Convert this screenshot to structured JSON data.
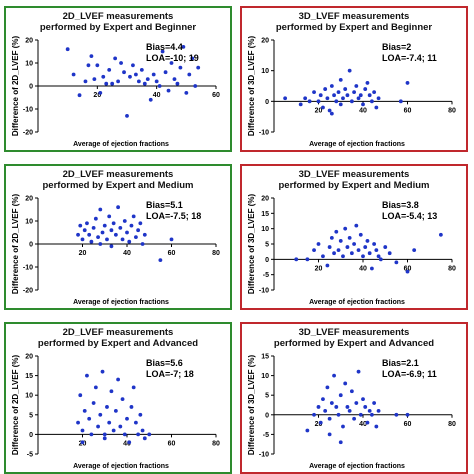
{
  "chart_data": [
    {
      "type": "scatter",
      "title": "2D_LVEF measurements performed by Expert and Beginner",
      "title_lines": [
        "2D_LVEF measurements",
        "performed by Expert and Beginner"
      ],
      "xlabel": "Average of ejection fractions",
      "ylabel": "Difference of 2D_LVEF (%)",
      "xlim": [
        0,
        60
      ],
      "ylim": [
        -20,
        20
      ],
      "xticks": [
        20,
        40,
        60
      ],
      "yticks": [
        -20,
        -10,
        0,
        10,
        20
      ],
      "bias_label": "Bias=4.4",
      "loa_label": "LOA=-10; 19",
      "frame_color": "#2e8b2e",
      "points": [
        [
          10,
          16
        ],
        [
          12,
          5
        ],
        [
          14,
          -4
        ],
        [
          16,
          2
        ],
        [
          17,
          9
        ],
        [
          18,
          13
        ],
        [
          19,
          3
        ],
        [
          20,
          9
        ],
        [
          21,
          -3
        ],
        [
          22,
          4
        ],
        [
          23,
          1
        ],
        [
          24,
          7
        ],
        [
          25,
          1
        ],
        [
          26,
          12
        ],
        [
          27,
          2
        ],
        [
          28,
          10
        ],
        [
          29,
          6
        ],
        [
          30,
          -13
        ],
        [
          31,
          4
        ],
        [
          32,
          9
        ],
        [
          33,
          5
        ],
        [
          34,
          2
        ],
        [
          35,
          7
        ],
        [
          36,
          1
        ],
        [
          37,
          3
        ],
        [
          38,
          -6
        ],
        [
          39,
          5
        ],
        [
          40,
          2
        ],
        [
          41,
          0
        ],
        [
          42,
          15
        ],
        [
          43,
          6
        ],
        [
          44,
          -2
        ],
        [
          45,
          10
        ],
        [
          46,
          3
        ],
        [
          47,
          1
        ],
        [
          48,
          8
        ],
        [
          49,
          17
        ],
        [
          50,
          -3
        ],
        [
          51,
          5
        ],
        [
          52,
          12
        ],
        [
          53,
          0
        ],
        [
          54,
          8
        ]
      ]
    },
    {
      "type": "scatter",
      "title": "3D_LVEF measurements performed by Expert and Beginner",
      "title_lines": [
        "3D_LVEF measurements",
        "performed by Expert and Beginner"
      ],
      "xlabel": "Average of ejection fractions",
      "ylabel": "Difference of 3D_LVEF (%)",
      "xlim": [
        0,
        80
      ],
      "ylim": [
        -10,
        20
      ],
      "xticks": [
        20,
        40,
        60,
        80
      ],
      "yticks": [
        -10,
        0,
        10,
        20
      ],
      "bias_label": "Bias=2",
      "loa_label": "LOA=-7.4; 11",
      "frame_color": "#c0282d",
      "points": [
        [
          5,
          1
        ],
        [
          12,
          -1
        ],
        [
          14,
          1
        ],
        [
          16,
          0
        ],
        [
          18,
          3
        ],
        [
          20,
          0
        ],
        [
          21,
          2
        ],
        [
          22,
          -2
        ],
        [
          23,
          4
        ],
        [
          24,
          1
        ],
        [
          25,
          -3
        ],
        [
          26,
          5
        ],
        [
          27,
          2
        ],
        [
          28,
          0
        ],
        [
          29,
          3
        ],
        [
          30,
          7
        ],
        [
          30,
          -1
        ],
        [
          31,
          1
        ],
        [
          32,
          4
        ],
        [
          33,
          2
        ],
        [
          34,
          10
        ],
        [
          35,
          0
        ],
        [
          36,
          3
        ],
        [
          37,
          5
        ],
        [
          38,
          1
        ],
        [
          39,
          2
        ],
        [
          40,
          -1
        ],
        [
          41,
          4
        ],
        [
          42,
          6
        ],
        [
          43,
          2
        ],
        [
          44,
          0
        ],
        [
          45,
          3
        ],
        [
          46,
          -2
        ],
        [
          47,
          1
        ],
        [
          57,
          0
        ],
        [
          60,
          6
        ],
        [
          26,
          -4
        ]
      ]
    },
    {
      "type": "scatter",
      "title": "2D_LVEF measurements performed by Expert and Medium",
      "title_lines": [
        "2D_LVEF measurements",
        "performed by Expert and Medium"
      ],
      "xlabel": "Average of ejection fractions",
      "ylabel": "Difference of 2D_LVEF (%)",
      "xlim": [
        0,
        80
      ],
      "ylim": [
        -20,
        20
      ],
      "xticks": [
        20,
        40,
        60,
        80
      ],
      "yticks": [
        -20,
        -10,
        0,
        10,
        20
      ],
      "bias_label": "Bias=5.1",
      "loa_label": "LOA=-7.5; 18",
      "frame_color": "#2e8b2e",
      "points": [
        [
          18,
          4
        ],
        [
          19,
          8
        ],
        [
          20,
          2
        ],
        [
          21,
          6
        ],
        [
          22,
          9
        ],
        [
          23,
          4
        ],
        [
          24,
          1
        ],
        [
          25,
          7
        ],
        [
          26,
          11
        ],
        [
          27,
          3
        ],
        [
          28,
          15
        ],
        [
          29,
          5
        ],
        [
          30,
          8
        ],
        [
          31,
          2
        ],
        [
          32,
          12
        ],
        [
          33,
          6
        ],
        [
          34,
          9
        ],
        [
          35,
          4
        ],
        [
          36,
          16
        ],
        [
          37,
          7
        ],
        [
          38,
          2
        ],
        [
          39,
          10
        ],
        [
          40,
          5
        ],
        [
          41,
          1
        ],
        [
          42,
          8
        ],
        [
          43,
          12
        ],
        [
          44,
          3
        ],
        [
          45,
          6
        ],
        [
          46,
          9
        ],
        [
          47,
          0
        ],
        [
          48,
          4
        ],
        [
          55,
          -7
        ],
        [
          60,
          2
        ],
        [
          33,
          -1
        ],
        [
          28,
          0
        ]
      ]
    },
    {
      "type": "scatter",
      "title": "3D_LVEF measurements performed by Expert and Medium",
      "title_lines": [
        "3D_LVEF measurements",
        "performed by Expert and Medium"
      ],
      "xlabel": "Average of ejection fractions",
      "ylabel": "Difference of 3D_LVEF (%)",
      "xlim": [
        0,
        80
      ],
      "ylim": [
        -10,
        20
      ],
      "xticks": [
        20,
        40,
        60,
        80
      ],
      "yticks": [
        -10,
        -5,
        0,
        5,
        10,
        15,
        20
      ],
      "bias_label": "Bias=3.8",
      "loa_label": "LOA=-5.4; 13",
      "frame_color": "#c0282d",
      "points": [
        [
          10,
          0
        ],
        [
          18,
          3
        ],
        [
          20,
          5
        ],
        [
          22,
          1
        ],
        [
          24,
          -2
        ],
        [
          25,
          4
        ],
        [
          26,
          7
        ],
        [
          27,
          2
        ],
        [
          28,
          9
        ],
        [
          29,
          3
        ],
        [
          30,
          6
        ],
        [
          31,
          1
        ],
        [
          32,
          10
        ],
        [
          33,
          4
        ],
        [
          34,
          7
        ],
        [
          35,
          2
        ],
        [
          36,
          5
        ],
        [
          37,
          11
        ],
        [
          38,
          3
        ],
        [
          39,
          8
        ],
        [
          40,
          1
        ],
        [
          41,
          4
        ],
        [
          42,
          6
        ],
        [
          43,
          2
        ],
        [
          44,
          -3
        ],
        [
          45,
          5
        ],
        [
          46,
          3
        ],
        [
          47,
          1
        ],
        [
          48,
          0
        ],
        [
          50,
          4
        ],
        [
          52,
          2
        ],
        [
          55,
          -1
        ],
        [
          60,
          -4
        ],
        [
          63,
          3
        ],
        [
          75,
          8
        ],
        [
          15,
          0
        ]
      ]
    },
    {
      "type": "scatter",
      "title": "2D_LVEF measurements performed by Expert and Advanced",
      "title_lines": [
        "2D_LVEF measurements",
        "performed by Expert and Advanced"
      ],
      "xlabel": "Average of ejection fractions",
      "ylabel": "Difference of 2D_LVEF (%)",
      "xlim": [
        0,
        80
      ],
      "ylim": [
        -5,
        20
      ],
      "xticks": [
        20,
        40,
        60,
        80
      ],
      "yticks": [
        -5,
        0,
        5,
        10,
        15,
        20
      ],
      "bias_label": "Bias=5.6",
      "loa_label": "LOA=-7; 18",
      "frame_color": "#2e8b2e",
      "points": [
        [
          18,
          3
        ],
        [
          19,
          10
        ],
        [
          20,
          1
        ],
        [
          21,
          6
        ],
        [
          22,
          15
        ],
        [
          23,
          4
        ],
        [
          24,
          0
        ],
        [
          25,
          8
        ],
        [
          26,
          12
        ],
        [
          27,
          2
        ],
        [
          28,
          5
        ],
        [
          29,
          16
        ],
        [
          30,
          -1
        ],
        [
          31,
          7
        ],
        [
          32,
          3
        ],
        [
          33,
          11
        ],
        [
          34,
          1
        ],
        [
          35,
          6
        ],
        [
          36,
          14
        ],
        [
          37,
          2
        ],
        [
          38,
          9
        ],
        [
          39,
          0
        ],
        [
          40,
          4
        ],
        [
          41,
          -2
        ],
        [
          42,
          7
        ],
        [
          43,
          12
        ],
        [
          44,
          3
        ],
        [
          45,
          0
        ],
        [
          46,
          5
        ],
        [
          47,
          1
        ],
        [
          48,
          -1
        ],
        [
          50,
          0
        ],
        [
          20,
          -2
        ],
        [
          30,
          0
        ]
      ]
    },
    {
      "type": "scatter",
      "title": "3D_LVEF measurements performed by Expert and Advanced",
      "title_lines": [
        "3D_LVEF measurements",
        "performed by Expert and Advanced"
      ],
      "xlabel": "Average of ejection fractions",
      "ylabel": "Difference of 3D_LVEF (%)",
      "xlim": [
        0,
        80
      ],
      "ylim": [
        -10,
        15
      ],
      "xticks": [
        20,
        40,
        60,
        80
      ],
      "yticks": [
        -10,
        -5,
        0,
        5,
        10,
        15
      ],
      "bias_label": "Bias=2.1",
      "loa_label": "LOA=-6.9; 11",
      "frame_color": "#c0282d",
      "points": [
        [
          15,
          -4
        ],
        [
          18,
          0
        ],
        [
          20,
          2
        ],
        [
          21,
          -2
        ],
        [
          22,
          4
        ],
        [
          23,
          1
        ],
        [
          24,
          7
        ],
        [
          25,
          -1
        ],
        [
          26,
          3
        ],
        [
          27,
          10
        ],
        [
          28,
          2
        ],
        [
          29,
          0
        ],
        [
          30,
          5
        ],
        [
          31,
          -3
        ],
        [
          32,
          8
        ],
        [
          33,
          2
        ],
        [
          34,
          1
        ],
        [
          35,
          6
        ],
        [
          36,
          -1
        ],
        [
          37,
          3
        ],
        [
          38,
          11
        ],
        [
          39,
          0
        ],
        [
          40,
          4
        ],
        [
          41,
          2
        ],
        [
          42,
          -2
        ],
        [
          43,
          1
        ],
        [
          44,
          0
        ],
        [
          45,
          3
        ],
        [
          46,
          -3
        ],
        [
          47,
          1
        ],
        [
          55,
          0
        ],
        [
          60,
          0
        ],
        [
          30,
          -7
        ],
        [
          25,
          -5
        ]
      ]
    }
  ]
}
